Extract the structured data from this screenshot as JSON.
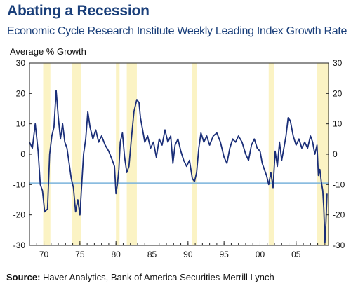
{
  "chart_data": {
    "type": "line",
    "title": "Abating a Recession",
    "subtitle": "Economic Cycle Research Institute Weekly Leading Index Growth Rate",
    "ylabel": "Average % Growth",
    "xlabel": "",
    "source_label": "Source:",
    "source_text": "Haver Analytics, Bank of America Securities-Merrill Lynch",
    "ylim": [
      -30,
      30
    ],
    "xlim": [
      1968,
      2009.5
    ],
    "yticks": [
      30,
      20,
      10,
      0,
      -10,
      -20,
      -30
    ],
    "yticks_right": [
      30,
      20,
      10,
      0,
      -10,
      -20,
      -30
    ],
    "xticks": [
      {
        "value": 1970,
        "label": "70"
      },
      {
        "value": 1975,
        "label": "75"
      },
      {
        "value": 1980,
        "label": "80"
      },
      {
        "value": 1985,
        "label": "85"
      },
      {
        "value": 1990,
        "label": "90"
      },
      {
        "value": 1995,
        "label": "95"
      },
      {
        "value": 2000,
        "label": "00"
      },
      {
        "value": 2005,
        "label": "05"
      }
    ],
    "reference_line": -9.5,
    "recession_bands": [
      [
        1969.9,
        1970.9
      ],
      [
        1973.9,
        1975.2
      ],
      [
        1980.0,
        1980.5
      ],
      [
        1981.5,
        1982.9
      ],
      [
        1990.6,
        1991.2
      ],
      [
        2001.2,
        2001.9
      ],
      [
        2007.9,
        2009.5
      ]
    ],
    "series": [
      {
        "x": [
          1968.0,
          1968.4,
          1968.8,
          1969.2,
          1969.5,
          1969.8,
          1970.1,
          1970.5,
          1970.8,
          1971.1,
          1971.4,
          1971.7,
          1972.0,
          1972.3,
          1972.6,
          1972.9,
          1973.2,
          1973.5,
          1973.8,
          1974.1,
          1974.4,
          1974.7,
          1975.0,
          1975.2,
          1975.5,
          1975.8,
          1976.1,
          1976.4,
          1976.8,
          1977.2,
          1977.6,
          1978.0,
          1978.5,
          1979.0,
          1979.5,
          1979.8,
          1980.0,
          1980.2,
          1980.4,
          1980.6,
          1980.9,
          1981.2,
          1981.5,
          1981.8,
          1982.1,
          1982.5,
          1982.9,
          1983.2,
          1983.4,
          1983.7,
          1984.0,
          1984.4,
          1984.8,
          1985.2,
          1985.6,
          1986.0,
          1986.4,
          1986.8,
          1987.2,
          1987.6,
          1987.9,
          1988.2,
          1988.6,
          1989.0,
          1989.4,
          1989.8,
          1990.2,
          1990.6,
          1990.9,
          1991.2,
          1991.5,
          1991.8,
          1992.2,
          1992.6,
          1993.0,
          1993.5,
          1994.0,
          1994.5,
          1995.0,
          1995.4,
          1995.8,
          1996.2,
          1996.6,
          1997.0,
          1997.5,
          1998.0,
          1998.4,
          1998.8,
          1999.2,
          1999.6,
          2000.0,
          2000.3,
          2000.6,
          2000.9,
          2001.2,
          2001.5,
          2001.8,
          2002.1,
          2002.4,
          2002.7,
          2003.0,
          2003.3,
          2003.6,
          2003.9,
          2004.2,
          2004.6,
          2005.0,
          2005.4,
          2005.8,
          2006.2,
          2006.6,
          2007.0,
          2007.3,
          2007.6,
          2007.9,
          2008.1,
          2008.3,
          2008.5,
          2008.7,
          2008.85,
          2009.0,
          2009.15,
          2009.3
        ],
        "y": [
          4,
          2,
          10,
          1,
          -10,
          -12,
          -19,
          -18,
          0,
          6,
          9,
          21,
          12,
          5,
          10,
          4,
          2,
          -3,
          -8,
          -11,
          -19,
          -15,
          -20,
          -12,
          0,
          5,
          14,
          9,
          5,
          8,
          4,
          6,
          3,
          1,
          -2,
          -4,
          -13,
          -10,
          -5,
          4,
          7,
          -1,
          -6,
          -4,
          4,
          14,
          18,
          17,
          12,
          8,
          4,
          6,
          2,
          4,
          -1,
          5,
          3,
          8,
          4,
          6,
          -3,
          3,
          5,
          1,
          -2,
          -4,
          -2,
          -8,
          -9,
          -6,
          2,
          7,
          4,
          6,
          3,
          6,
          7,
          4,
          -1,
          -3,
          2,
          5,
          4,
          6,
          4,
          0,
          -2,
          3,
          5,
          2,
          1,
          -3,
          -5,
          -7,
          -10,
          -6,
          -11,
          1,
          -4,
          4,
          -2,
          2,
          6,
          12,
          11,
          6,
          3,
          5,
          2,
          4,
          2,
          6,
          4,
          0,
          3,
          -7,
          -5,
          -9,
          -12,
          -18,
          -29,
          -22,
          -13
        ]
      }
    ]
  }
}
